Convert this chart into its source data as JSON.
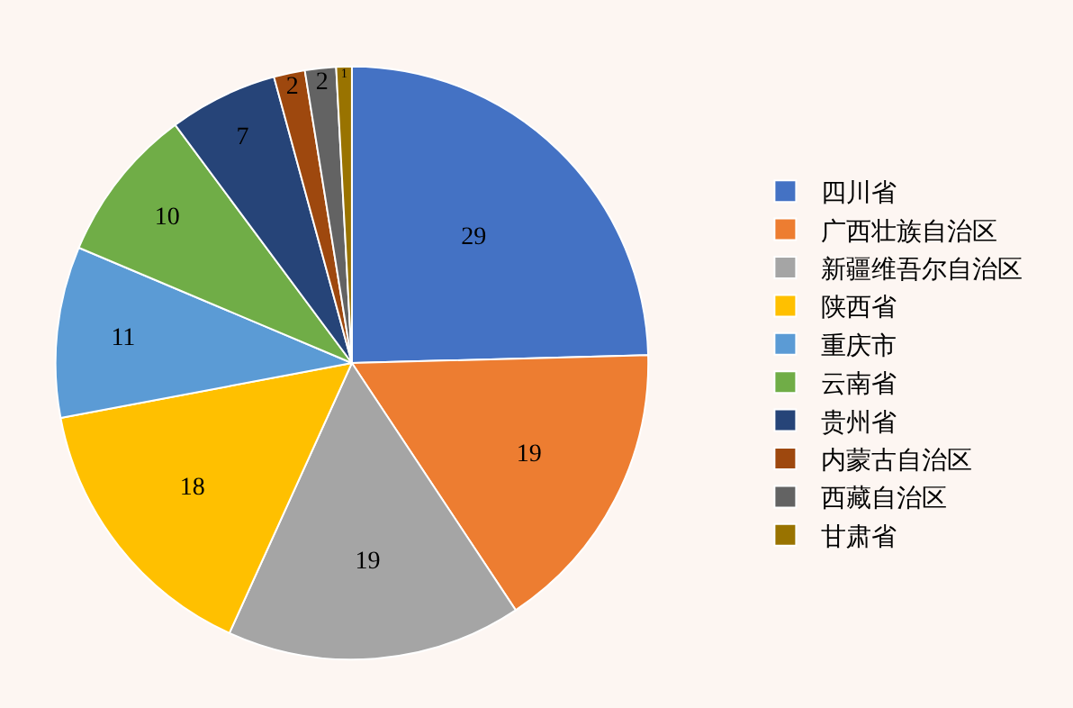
{
  "chart_data": {
    "type": "pie",
    "categories": [
      "四川省",
      "广西壮族自治区",
      "新疆维吾尔自治区",
      "陕西省",
      "重庆市",
      "云南省",
      "贵州省",
      "内蒙古自治区",
      "西藏自治区",
      "甘肃省"
    ],
    "values": [
      29,
      19,
      19,
      18,
      11,
      10,
      7,
      2,
      2,
      1
    ],
    "colors": [
      "#4472c4",
      "#ed7d31",
      "#a5a5a5",
      "#ffc000",
      "#5b9bd5",
      "#70ad47",
      "#264478",
      "#9e480e",
      "#636363",
      "#997300"
    ],
    "data_labels": true,
    "legend": "right"
  }
}
